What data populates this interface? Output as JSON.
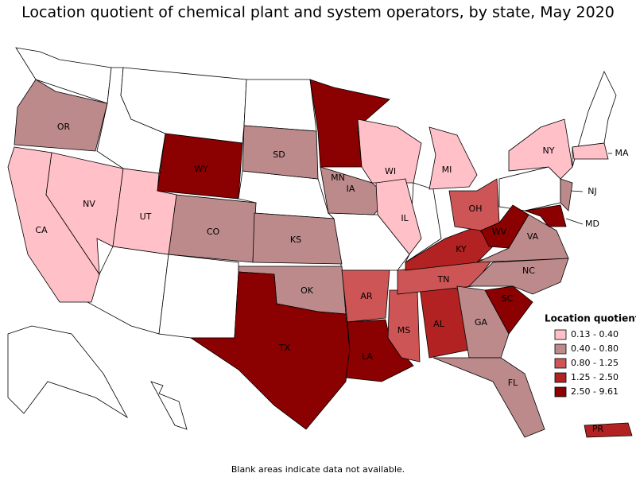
{
  "title": "Location quotient of chemical plant and system operators, by state, May 2020",
  "legend": {
    "title": "Location quotient",
    "items": [
      {
        "label": "0.13 - 0.40",
        "color": "#ffc0c8"
      },
      {
        "label": "0.40 - 0.80",
        "color": "#bc8a8a"
      },
      {
        "label": "0.80 - 1.25",
        "color": "#cd5555"
      },
      {
        "label": "1.25 - 2.50",
        "color": "#b22222"
      },
      {
        "label": "2.50 - 9.61",
        "color": "#8b0000"
      }
    ]
  },
  "states": [
    {
      "label": "OR",
      "color": "#bc8a8a"
    },
    {
      "label": "CA",
      "color": "#ffc0c8"
    },
    {
      "label": "NV",
      "color": "#ffc0c8"
    },
    {
      "label": "UT",
      "color": "#ffc0c8"
    },
    {
      "label": "WY",
      "color": "#8b0000"
    },
    {
      "label": "CO",
      "color": "#bc8a8a"
    },
    {
      "label": "SD",
      "color": "#bc8a8a"
    },
    {
      "label": "MN",
      "color": "#8b0000"
    },
    {
      "label": "WI",
      "color": "#ffc0c8"
    },
    {
      "label": "MI",
      "color": "#ffc0c8"
    },
    {
      "label": "IA",
      "color": "#bc8a8a"
    },
    {
      "label": "IL",
      "color": "#ffc0c8"
    },
    {
      "label": "KS",
      "color": "#bc8a8a"
    },
    {
      "label": "OK",
      "color": "#bc8a8a"
    },
    {
      "label": "TX",
      "color": "#8b0000"
    },
    {
      "label": "AR",
      "color": "#cd5555"
    },
    {
      "label": "LA",
      "color": "#8b0000"
    },
    {
      "label": "MS",
      "color": "#cd5555"
    },
    {
      "label": "AL",
      "color": "#b22222"
    },
    {
      "label": "TN",
      "color": "#cd5555"
    },
    {
      "label": "KY",
      "color": "#b22222"
    },
    {
      "label": "OH",
      "color": "#cd5555"
    },
    {
      "label": "WV",
      "color": "#8b0000"
    },
    {
      "label": "VA",
      "color": "#bc8a8a"
    },
    {
      "label": "NC",
      "color": "#bc8a8a"
    },
    {
      "label": "SC",
      "color": "#8b0000"
    },
    {
      "label": "GA",
      "color": "#bc8a8a"
    },
    {
      "label": "FL",
      "color": "#bc8a8a"
    },
    {
      "label": "NY",
      "color": "#ffc0c8"
    },
    {
      "label": "MA",
      "color": "#ffc0c8"
    },
    {
      "label": "NJ",
      "color": "#bc8a8a"
    },
    {
      "label": "MD",
      "color": "#8b0000"
    },
    {
      "label": "PR",
      "color": "#b22222"
    }
  ],
  "note": "Blank areas indicate data not available."
}
